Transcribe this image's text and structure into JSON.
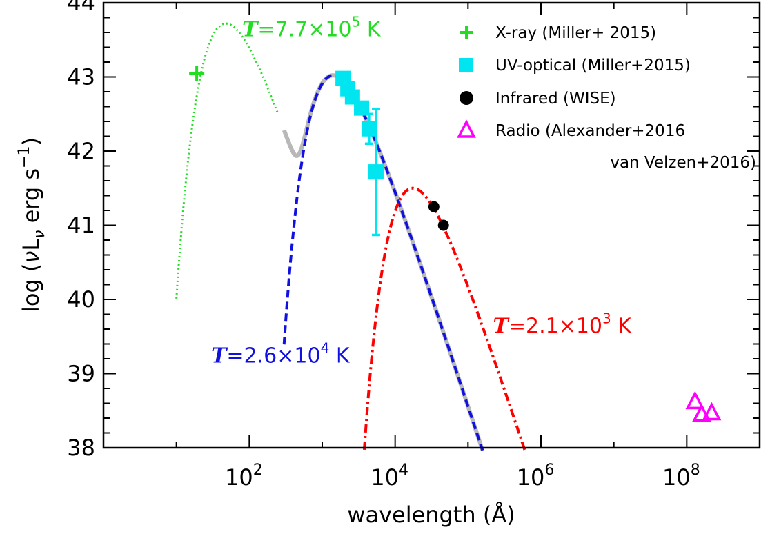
{
  "chart_data": {
    "type": "scatter",
    "title": "",
    "xlabel": "wavelength (Å)",
    "ylabel": "log (νLν erg s⁻¹)",
    "ylabel_parts": {
      "prefix": "log (",
      "nu": "ν",
      "L": "L",
      "nu_sub": "ν",
      "rest": " erg s",
      "sup": "−1",
      "suffix": ")"
    },
    "x_scale": "log",
    "xlim": [
      1,
      1000000000
    ],
    "ylim": [
      38,
      44
    ],
    "x_tick_labels": [
      {
        "value": 100,
        "base": "10",
        "exp": "2"
      },
      {
        "value": 10000,
        "base": "10",
        "exp": "4"
      },
      {
        "value": 1000000,
        "base": "10",
        "exp": "6"
      },
      {
        "value": 100000000,
        "base": "10",
        "exp": "8"
      }
    ],
    "y_ticks": [
      "38",
      "39",
      "40",
      "41",
      "42",
      "43",
      "44"
    ],
    "grid": false,
    "legend_position": "top-right",
    "legend": [
      {
        "marker": "plus",
        "color": "#22dd22",
        "label": "X-ray (Miller+ 2015)"
      },
      {
        "marker": "square",
        "color": "#00e5f0",
        "label": "UV-optical (Miller+2015)"
      },
      {
        "marker": "circle",
        "color": "#000000",
        "label": "Infrared (WISE)"
      },
      {
        "marker": "triangle",
        "color": "#ff00ff",
        "label": "Radio (Alexander+2016",
        "label2": "van Velzen+2016)"
      }
    ],
    "annotations": [
      {
        "prefix": "T",
        "mid": "=7.7×10",
        "sup": "5",
        "suffix": " K",
        "color": "#22dd22",
        "x": 80,
        "y": 43.55
      },
      {
        "prefix": "T",
        "mid": "=2.6×10",
        "sup": "4",
        "suffix": " K",
        "color": "#1010e0",
        "x": 30,
        "y": 39.15
      },
      {
        "prefix": "T",
        "mid": "=2.1×10",
        "sup": "3",
        "suffix": " K",
        "color": "#ff0000",
        "x": 220000,
        "y": 39.55
      }
    ],
    "series": [
      {
        "name": "X-ray (Miller+ 2015)",
        "kind": "points",
        "marker": "plus",
        "color": "#22dd22",
        "points": [
          {
            "x": 19,
            "y": 43.05
          }
        ]
      },
      {
        "name": "UV-optical (Miller+2015)",
        "kind": "points",
        "marker": "square",
        "color": "#00e5f0",
        "points": [
          {
            "x": 1928,
            "y": 42.98
          },
          {
            "x": 2246,
            "y": 42.84
          },
          {
            "x": 2600,
            "y": 42.73
          },
          {
            "x": 3465,
            "y": 42.58
          },
          {
            "x": 4392,
            "y": 42.3,
            "err": 0.2
          },
          {
            "x": 5468,
            "y": 41.72,
            "err": 0.85
          }
        ]
      },
      {
        "name": "Infrared (WISE)",
        "kind": "points",
        "marker": "circle",
        "color": "#000000",
        "points": [
          {
            "x": 34000,
            "y": 41.25
          },
          {
            "x": 46000,
            "y": 41.0
          }
        ]
      },
      {
        "name": "Radio (Alexander+2016 van Velzen+2016)",
        "kind": "points",
        "marker": "triangle",
        "color": "#ff00ff",
        "points": [
          {
            "x": 130000000,
            "y": 38.62
          },
          {
            "x": 160000000,
            "y": 38.45
          },
          {
            "x": 220000000,
            "y": 38.47
          }
        ]
      },
      {
        "kind": "blackbody",
        "style": "dotted",
        "color": "#22dd22",
        "temperature_K": 770000,
        "peak_logL": 43.72,
        "x_range": [
          10,
          250
        ],
        "width": 3
      },
      {
        "kind": "blackbody",
        "style": "dashed",
        "color": "#1010e0",
        "temperature_K": 26000,
        "peak_logL": 43.02,
        "x_range": [
          300,
          200000
        ],
        "width": 4
      },
      {
        "kind": "blackbody",
        "style": "dashdot",
        "color": "#ff0000",
        "temperature_K": 2100,
        "peak_logL": 41.5,
        "x_range": [
          2000,
          800000
        ],
        "width": 4
      },
      {
        "kind": "sum",
        "style": "solid",
        "color": "#b8b8b8",
        "components": [
          1,
          2
        ],
        "x_range": [
          300,
          800000
        ],
        "width": 6
      }
    ]
  }
}
